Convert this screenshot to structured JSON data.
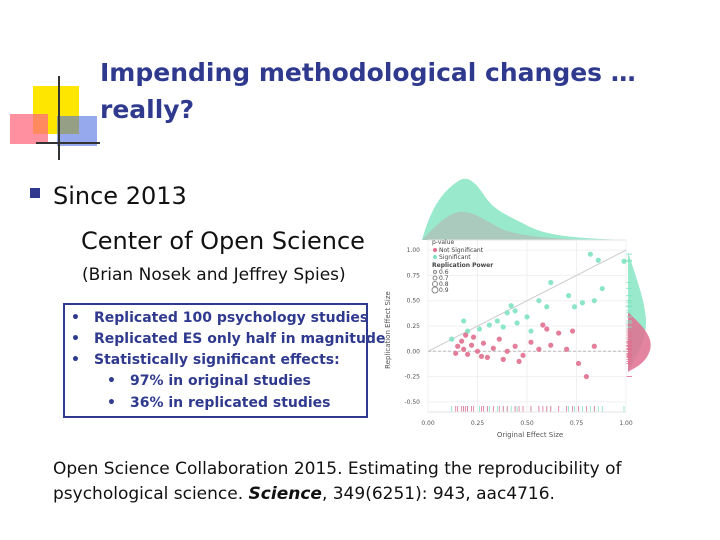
{
  "slide": {
    "title_line1": "Impending methodological changes …",
    "title_line2": "really?",
    "bullet_main": "Since 2013",
    "sub_line1": "Center of Open Science",
    "sub_line2": "(Brian Nosek and Jeffrey Spies)",
    "box_items": [
      "Replicated 100 psychology studies",
      "Replicated ES only half in magnitude",
      "Statistically significant effects:",
      "97% in original studies",
      "36% in replicated studies"
    ],
    "citation_pre": "Open Science Collaboration 2015. Estimating the reproducibility of psychological science. ",
    "citation_journal": "Science",
    "citation_post": ", 349(6251): 943, aac4716."
  },
  "chart_data": {
    "type": "scatter",
    "xlabel": "Original Effect Size",
    "ylabel": "Replication Effect Size",
    "xlim": [
      0,
      1
    ],
    "ylim": [
      -0.6,
      1.1
    ],
    "x_ticks": [
      "0.00",
      "0.25",
      "0.50",
      "0.75",
      "1.00"
    ],
    "y_ticks": [
      "1.00",
      "0.75",
      "0.50",
      "0.25",
      "0.00",
      "-0.25",
      "-0.50"
    ],
    "legend": {
      "pvalue_title": "p-value",
      "pvalue_items": [
        "Not Significant",
        "Significant"
      ],
      "power_title": "Replication Power",
      "power_items": [
        "0.6",
        "0.7",
        "0.8",
        "0.9"
      ]
    },
    "series": [
      {
        "name": "Significant",
        "color": "#7fe3c0",
        "points": [
          [
            0.82,
            0.96
          ],
          [
            0.86,
            0.9
          ],
          [
            0.99,
            0.89
          ],
          [
            0.62,
            0.68
          ],
          [
            0.71,
            0.55
          ],
          [
            0.56,
            0.5
          ],
          [
            0.6,
            0.44
          ],
          [
            0.74,
            0.44
          ],
          [
            0.78,
            0.48
          ],
          [
            0.84,
            0.5
          ],
          [
            0.4,
            0.38
          ],
          [
            0.44,
            0.4
          ],
          [
            0.5,
            0.34
          ],
          [
            0.35,
            0.3
          ],
          [
            0.31,
            0.26
          ],
          [
            0.38,
            0.24
          ],
          [
            0.26,
            0.22
          ],
          [
            0.2,
            0.2
          ],
          [
            0.18,
            0.3
          ],
          [
            0.45,
            0.28
          ],
          [
            0.52,
            0.2
          ],
          [
            0.12,
            0.12
          ],
          [
            0.42,
            0.45
          ],
          [
            0.88,
            0.62
          ]
        ]
      },
      {
        "name": "Not Significant",
        "color": "#e06f8f",
        "points": [
          [
            0.15,
            0.05
          ],
          [
            0.18,
            0.02
          ],
          [
            0.2,
            -0.03
          ],
          [
            0.22,
            0.06
          ],
          [
            0.25,
            0.0
          ],
          [
            0.14,
            -0.02
          ],
          [
            0.17,
            0.1
          ],
          [
            0.23,
            0.14
          ],
          [
            0.28,
            0.08
          ],
          [
            0.3,
            -0.06
          ],
          [
            0.33,
            0.03
          ],
          [
            0.36,
            0.12
          ],
          [
            0.4,
            0.0
          ],
          [
            0.44,
            0.05
          ],
          [
            0.48,
            -0.04
          ],
          [
            0.52,
            0.09
          ],
          [
            0.56,
            0.02
          ],
          [
            0.6,
            0.22
          ],
          [
            0.58,
            0.26
          ],
          [
            0.66,
            0.18
          ],
          [
            0.7,
            0.02
          ],
          [
            0.73,
            0.2
          ],
          [
            0.76,
            -0.12
          ],
          [
            0.8,
            -0.25
          ],
          [
            0.84,
            0.05
          ],
          [
            0.46,
            -0.1
          ],
          [
            0.38,
            -0.08
          ],
          [
            0.27,
            -0.05
          ],
          [
            0.19,
            0.16
          ],
          [
            0.62,
            0.06
          ]
        ]
      }
    ]
  },
  "colors": {
    "title": "#2f3a8f",
    "sig": "#7fe3c0",
    "nonsig": "#e06f8f"
  }
}
